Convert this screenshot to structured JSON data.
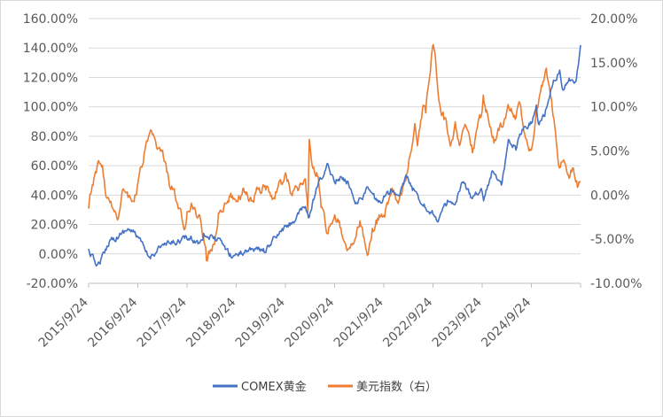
{
  "chart_data": {
    "type": "line",
    "title": "",
    "xlabel": "",
    "ylabel": "",
    "x_ticks": [
      "2015/9/24",
      "2016/9/24",
      "2017/9/24",
      "2018/9/24",
      "2019/9/24",
      "2020/9/24",
      "2021/9/24",
      "2022/9/24",
      "2023/9/24",
      "2024/9/24"
    ],
    "x_range": [
      "2015-09-24",
      "2025-09-24"
    ],
    "y_left": {
      "ticks": [
        "160.00%",
        "140.00%",
        "120.00%",
        "100.00%",
        "80.00%",
        "60.00%",
        "40.00%",
        "20.00%",
        "0.00%",
        "-20.00%"
      ],
      "ylim": [
        -20,
        160
      ]
    },
    "y_right": {
      "ticks": [
        "20.00%",
        "15.00%",
        "10.00%",
        "5.00%",
        "0.00%",
        "-5.00%",
        "-10.00%"
      ],
      "ylim": [
        -10,
        20
      ]
    },
    "legend_position": "bottom",
    "grid": true,
    "series": [
      {
        "name": "COMEX黄金",
        "axis": "left",
        "color": "#4472c4",
        "points": [
          [
            "2015-09-24",
            2
          ],
          [
            "2015-10-20",
            -2
          ],
          [
            "2015-12-01",
            -8
          ],
          [
            "2016-01-15",
            0
          ],
          [
            "2016-03-01",
            10
          ],
          [
            "2016-05-01",
            12
          ],
          [
            "2016-07-10",
            17
          ],
          [
            "2016-09-24",
            12
          ],
          [
            "2016-11-15",
            2
          ],
          [
            "2016-12-20",
            -3
          ],
          [
            "2017-03-01",
            5
          ],
          [
            "2017-06-01",
            7
          ],
          [
            "2017-09-24",
            11
          ],
          [
            "2017-12-15",
            8
          ],
          [
            "2018-01-25",
            13
          ],
          [
            "2018-04-01",
            11
          ],
          [
            "2018-06-01",
            8
          ],
          [
            "2018-08-15",
            -1
          ],
          [
            "2018-10-15",
            0
          ],
          [
            "2019-01-15",
            4
          ],
          [
            "2019-05-01",
            2
          ],
          [
            "2019-06-20",
            9
          ],
          [
            "2019-09-24",
            18
          ],
          [
            "2019-11-20",
            22
          ],
          [
            "2020-02-20",
            32
          ],
          [
            "2020-03-19",
            24
          ],
          [
            "2020-05-15",
            45
          ],
          [
            "2020-08-06",
            60
          ],
          [
            "2020-09-24",
            50
          ],
          [
            "2020-11-10",
            52
          ],
          [
            "2021-01-06",
            48
          ],
          [
            "2021-03-08",
            34
          ],
          [
            "2021-06-01",
            45
          ],
          [
            "2021-08-09",
            35
          ],
          [
            "2021-09-24",
            38
          ],
          [
            "2021-11-15",
            43
          ],
          [
            "2022-01-10",
            38
          ],
          [
            "2022-03-08",
            53
          ],
          [
            "2022-05-01",
            43
          ],
          [
            "2022-07-20",
            33
          ],
          [
            "2022-09-24",
            28
          ],
          [
            "2022-11-01",
            23
          ],
          [
            "2023-01-10",
            35
          ],
          [
            "2023-03-01",
            32
          ],
          [
            "2023-05-04",
            48
          ],
          [
            "2023-07-01",
            40
          ],
          [
            "2023-09-24",
            44
          ],
          [
            "2023-10-05",
            36
          ],
          [
            "2023-12-04",
            55
          ],
          [
            "2024-02-14",
            48
          ],
          [
            "2024-04-12",
            78
          ],
          [
            "2024-06-01",
            72
          ],
          [
            "2024-07-17",
            85
          ],
          [
            "2024-09-24",
            90
          ],
          [
            "2024-10-31",
            100
          ],
          [
            "2024-11-14",
            88
          ],
          [
            "2025-01-01",
            95
          ],
          [
            "2025-02-24",
            115
          ],
          [
            "2025-04-22",
            125
          ],
          [
            "2025-05-15",
            113
          ],
          [
            "2025-07-01",
            118
          ],
          [
            "2025-08-20",
            116
          ],
          [
            "2025-09-10",
            132
          ],
          [
            "2025-09-24",
            142
          ]
        ]
      },
      {
        "name": "美元指数（右）",
        "axis": "right",
        "color": "#ed7d31",
        "points": [
          [
            "2015-09-24",
            -1.5
          ],
          [
            "2015-10-15",
            0.5
          ],
          [
            "2015-12-02",
            3.5
          ],
          [
            "2016-01-05",
            3
          ],
          [
            "2016-02-05",
            -0.5
          ],
          [
            "2016-04-01",
            -1.5
          ],
          [
            "2016-05-01",
            -2.5
          ],
          [
            "2016-06-01",
            0.5
          ],
          [
            "2016-07-01",
            0.5
          ],
          [
            "2016-08-15",
            -1
          ],
          [
            "2016-09-24",
            1
          ],
          [
            "2016-11-15",
            5
          ],
          [
            "2017-01-03",
            7
          ],
          [
            "2017-02-15",
            5
          ],
          [
            "2017-04-01",
            4.5
          ],
          [
            "2017-05-15",
            1.5
          ],
          [
            "2017-06-15",
            0.5
          ],
          [
            "2017-07-15",
            -1
          ],
          [
            "2017-09-08",
            -4
          ],
          [
            "2017-09-24",
            -2
          ],
          [
            "2017-11-01",
            -1
          ],
          [
            "2018-01-01",
            -3
          ],
          [
            "2018-02-15",
            -7
          ],
          [
            "2018-03-15",
            -6.5
          ],
          [
            "2018-04-15",
            -5.5
          ],
          [
            "2018-05-15",
            -2
          ],
          [
            "2018-07-01",
            -1
          ],
          [
            "2018-08-15",
            0
          ],
          [
            "2018-09-24",
            -1
          ],
          [
            "2018-11-12",
            0.5
          ],
          [
            "2019-01-15",
            -0.5
          ],
          [
            "2019-03-01",
            0.5
          ],
          [
            "2019-05-01",
            1
          ],
          [
            "2019-06-25",
            -0.5
          ],
          [
            "2019-08-01",
            1
          ],
          [
            "2019-09-30",
            2
          ],
          [
            "2019-11-01",
            0.5
          ],
          [
            "2020-01-01",
            1
          ],
          [
            "2020-02-20",
            1.5
          ],
          [
            "2020-03-09",
            -1.5
          ],
          [
            "2020-03-19",
            6
          ],
          [
            "2020-04-15",
            3
          ],
          [
            "2020-05-25",
            2.5
          ],
          [
            "2020-06-15",
            -1.5
          ],
          [
            "2020-07-31",
            -4
          ],
          [
            "2020-09-24",
            -2
          ],
          [
            "2020-11-15",
            -4
          ],
          [
            "2021-01-06",
            -6.5
          ],
          [
            "2021-03-31",
            -3
          ],
          [
            "2021-05-25",
            -6.5
          ],
          [
            "2021-06-30",
            -4
          ],
          [
            "2021-08-20",
            -2.5
          ],
          [
            "2021-09-24",
            -2.5
          ],
          [
            "2021-11-24",
            0.5
          ],
          [
            "2022-01-14",
            -1
          ],
          [
            "2022-03-07",
            2
          ],
          [
            "2022-04-28",
            6.5
          ],
          [
            "2022-05-12",
            8
          ],
          [
            "2022-06-01",
            6
          ],
          [
            "2022-07-14",
            10.5
          ],
          [
            "2022-08-01",
            9.5
          ],
          [
            "2022-09-27",
            17.5
          ],
          [
            "2022-10-15",
            15
          ],
          [
            "2022-11-15",
            10
          ],
          [
            "2023-01-01",
            8
          ],
          [
            "2023-02-01",
            6
          ],
          [
            "2023-03-08",
            8
          ],
          [
            "2023-04-14",
            5.5
          ],
          [
            "2023-05-31",
            8
          ],
          [
            "2023-07-14",
            5
          ],
          [
            "2023-09-24",
            9.5
          ],
          [
            "2023-10-03",
            11
          ],
          [
            "2023-12-27",
            6
          ],
          [
            "2024-02-14",
            8
          ],
          [
            "2024-04-16",
            10
          ],
          [
            "2024-06-01",
            9
          ],
          [
            "2024-07-01",
            10
          ],
          [
            "2024-08-27",
            5.5
          ],
          [
            "2024-09-24",
            5
          ],
          [
            "2024-10-31",
            10
          ],
          [
            "2025-01-13",
            14
          ],
          [
            "2025-02-15",
            11
          ],
          [
            "2025-03-15",
            8
          ],
          [
            "2025-04-21",
            3
          ],
          [
            "2025-05-15",
            4
          ],
          [
            "2025-07-01",
            1.5
          ],
          [
            "2025-08-01",
            3.5
          ],
          [
            "2025-09-01",
            1
          ],
          [
            "2025-09-24",
            1.5
          ]
        ]
      }
    ]
  }
}
